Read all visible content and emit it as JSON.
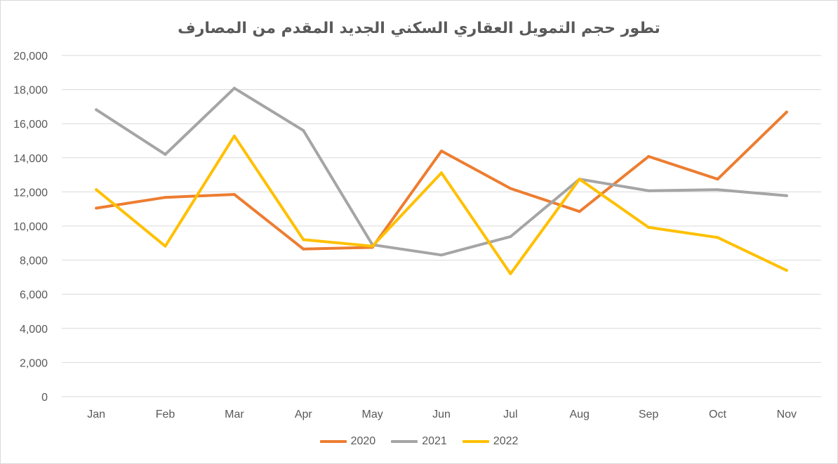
{
  "chart_data": {
    "type": "line",
    "title": "تطور حجم التمويل العقاري السكني الجديد المقدم من المصارف",
    "xlabel": "",
    "ylabel": "",
    "categories": [
      "Jan",
      "Feb",
      "Mar",
      "Apr",
      "May",
      "Jun",
      "Jul",
      "Aug",
      "Sep",
      "Oct",
      "Nov"
    ],
    "ylim": [
      0,
      20000
    ],
    "y_ticks": [
      0,
      2000,
      4000,
      6000,
      8000,
      10000,
      12000,
      14000,
      16000,
      18000,
      20000
    ],
    "y_tick_labels": [
      "0",
      "2,000",
      "4,000",
      "6,000",
      "8,000",
      "10,000",
      "12,000",
      "14,000",
      "16,000",
      "18,000",
      "20,000"
    ],
    "grid": "horizontal",
    "legend_position": "bottom",
    "series": [
      {
        "name": "2020",
        "color": "#ED7D31",
        "values": [
          11050,
          11680,
          11850,
          8650,
          8750,
          14400,
          12200,
          10850,
          14080,
          12750,
          16680
        ]
      },
      {
        "name": "2021",
        "color": "#A5A5A5",
        "values": [
          16820,
          14200,
          18080,
          15600,
          8900,
          8300,
          9380,
          12750,
          12070,
          12130,
          11780
        ]
      },
      {
        "name": "2022",
        "color": "#FFC000",
        "values": [
          12130,
          8820,
          15280,
          9200,
          8820,
          13120,
          7200,
          12750,
          9920,
          9330,
          7400
        ]
      }
    ]
  }
}
